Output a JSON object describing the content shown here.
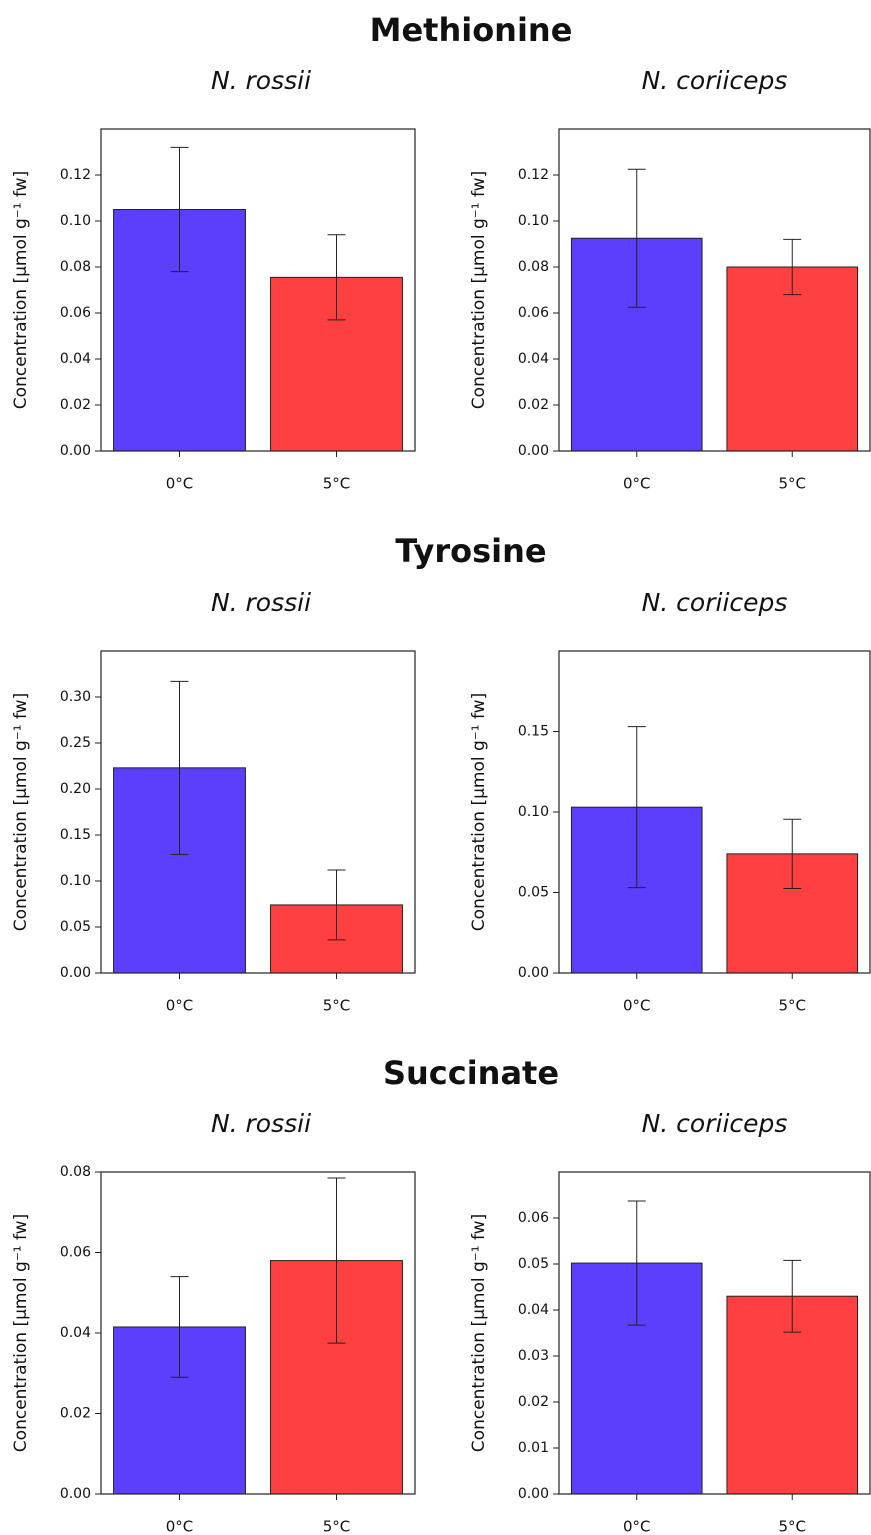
{
  "headings": [
    "Methionine",
    "Tyrosine",
    "Succinate"
  ],
  "chart_data": [
    {
      "type": "bar",
      "title": "N. rossii",
      "ylabel": "Concentration [µmol g⁻¹ fw]",
      "categories": [
        "0°C",
        "5°C"
      ],
      "values": [
        0.105,
        0.0755
      ],
      "errors": [
        0.027,
        0.0185
      ],
      "colors": [
        "#5b3ffd",
        "#fe4040"
      ],
      "ylim": [
        0,
        0.14
      ],
      "yticks": [
        {
          "value": 0,
          "label": "0.00"
        },
        0.02,
        0.04,
        0.06,
        0.08,
        {
          "value": 0.1,
          "label": "0.10"
        },
        0.12
      ]
    },
    {
      "type": "bar",
      "title": "N. coriiceps",
      "ylabel": "Concentration [µmol g⁻¹ fw]",
      "categories": [
        "0°C",
        "5°C"
      ],
      "values": [
        0.0925,
        0.08
      ],
      "errors": [
        0.03,
        0.012
      ],
      "colors": [
        "#5b3ffd",
        "#fe4040"
      ],
      "ylim": [
        0,
        0.14
      ],
      "yticks": [
        {
          "value": 0,
          "label": "0.00"
        },
        0.02,
        0.04,
        0.06,
        0.08,
        {
          "value": 0.1,
          "label": "0.10"
        },
        0.12
      ]
    },
    {
      "type": "bar",
      "title": "N. rossii",
      "ylabel": "Concentration [µmol g⁻¹ fw]",
      "categories": [
        "0°C",
        "5°C"
      ],
      "values": [
        0.223,
        0.074
      ],
      "errors": [
        0.094,
        0.038
      ],
      "colors": [
        "#5b3ffd",
        "#fe4040"
      ],
      "ylim": [
        0,
        0.35
      ],
      "yticks": [
        {
          "value": 0,
          "label": "0.00"
        },
        0.05,
        {
          "value": 0.1,
          "label": "0.10"
        },
        0.15,
        {
          "value": 0.2,
          "label": "0.20"
        },
        0.25,
        {
          "value": 0.3,
          "label": "0.30"
        }
      ]
    },
    {
      "type": "bar",
      "title": "N. coriiceps",
      "ylabel": "Concentration [µmol g⁻¹ fw]",
      "categories": [
        "0°C",
        "5°C"
      ],
      "values": [
        0.103,
        0.074
      ],
      "errors": [
        0.05,
        0.0215
      ],
      "colors": [
        "#5b3ffd",
        "#fe4040"
      ],
      "ylim": [
        0,
        0.2
      ],
      "yticks": [
        {
          "value": 0,
          "label": "0.00"
        },
        0.05,
        {
          "value": 0.1,
          "label": "0.10"
        },
        0.15
      ]
    },
    {
      "type": "bar",
      "title": "N. rossii",
      "ylabel": "Concentration [µmol g⁻¹ fw]",
      "categories": [
        "0°C",
        "5°C"
      ],
      "values": [
        0.0415,
        0.058
      ],
      "errors": [
        0.0125,
        0.0205
      ],
      "colors": [
        "#5b3ffd",
        "#fe4040"
      ],
      "ylim": [
        0,
        0.08
      ],
      "yticks": [
        {
          "value": 0,
          "label": "0.00"
        },
        0.02,
        0.04,
        0.06,
        0.08
      ]
    },
    {
      "type": "bar",
      "title": "N. coriiceps",
      "ylabel": "Concentration [µmol g⁻¹ fw]",
      "categories": [
        "0°C",
        "5°C"
      ],
      "values": [
        0.0502,
        0.043
      ],
      "errors": [
        0.0135,
        0.0078
      ],
      "colors": [
        "#5b3ffd",
        "#fe4040"
      ],
      "ylim": [
        0,
        0.07
      ],
      "yticks": [
        {
          "value": 0,
          "label": "0.00"
        },
        0.01,
        0.02,
        0.03,
        0.04,
        0.05,
        0.06
      ]
    }
  ]
}
